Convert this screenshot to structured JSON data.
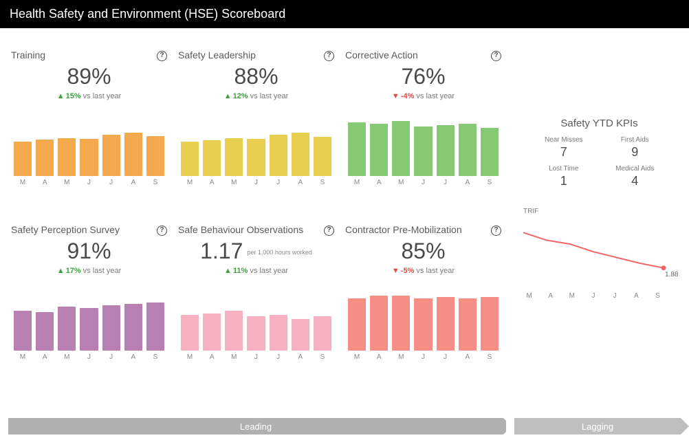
{
  "header": {
    "title": "Health Safety and Environment (HSE) Scoreboard"
  },
  "x_labels": [
    "M",
    "A",
    "M",
    "J",
    "J",
    "A",
    "S"
  ],
  "cards": [
    {
      "title": "Training",
      "pct": "89%",
      "delta": "15%",
      "delta_dir": "up",
      "delta_suffix": "vs last year",
      "bar_color": "#f4a94d",
      "values": [
        50,
        53,
        55,
        54,
        60,
        63,
        58
      ],
      "ymax": 100
    },
    {
      "title": "Safety Leadership",
      "pct": "88%",
      "delta": "12%",
      "delta_dir": "up",
      "delta_suffix": "vs last year",
      "bar_color": "#e9ce4f",
      "values": [
        50,
        52,
        55,
        54,
        60,
        63,
        57
      ],
      "ymax": 100
    },
    {
      "title": "Corrective Action",
      "pct": "76%",
      "delta": "-4%",
      "delta_dir": "down",
      "delta_suffix": "vs last year",
      "bar_color": "#86c974",
      "values": [
        78,
        76,
        80,
        72,
        74,
        76,
        70
      ],
      "ymax": 100
    },
    {
      "title": "Safety Perception Survey",
      "pct": "91%",
      "delta": "17%",
      "delta_dir": "up",
      "delta_suffix": "vs last year",
      "bar_color": "#b77fb2",
      "values": [
        58,
        56,
        64,
        62,
        66,
        68,
        70
      ],
      "ymax": 100
    },
    {
      "title": "Safe Behaviour Observations",
      "pct": "1.17",
      "sub_note": "per 1,000 hours worked",
      "delta": "11%",
      "delta_dir": "up",
      "delta_suffix": "vs last year",
      "bar_color": "#f6b0c2",
      "values": [
        52,
        54,
        58,
        50,
        52,
        46,
        50
      ],
      "ymax": 100
    },
    {
      "title": "Contractor Pre-Mobilization",
      "pct": "85%",
      "delta": "-5%",
      "delta_dir": "down",
      "delta_suffix": "vs last year",
      "bar_color": "#f58e85",
      "values": [
        76,
        80,
        80,
        76,
        78,
        76,
        78
      ],
      "ymax": 100
    }
  ],
  "kpi_panel": {
    "title": "Safety YTD KPIs",
    "items": [
      {
        "label": "Near Misses",
        "value": "7"
      },
      {
        "label": "First Aids",
        "value": "9"
      },
      {
        "label": "Lost Time",
        "value": "1"
      },
      {
        "label": "Medical Aids",
        "value": "4"
      }
    ]
  },
  "trif": {
    "label": "TRIF",
    "color": "#f26666",
    "values": [
      2.8,
      2.6,
      2.5,
      2.3,
      2.15,
      2.0,
      1.88
    ],
    "ymin": 1.5,
    "ymax": 3.0,
    "end_label": "1.88"
  },
  "footer": {
    "leading": "Leading",
    "lagging": "Lagging"
  },
  "style": {
    "bg": "#ffffff",
    "text": "#4a4a4a",
    "axis_text": "#888888",
    "up_color": "#3aa23a",
    "down_color": "#e64545",
    "arrow_leading_bg": "#b0b0b0",
    "arrow_lagging_bg": "#bfbfbf"
  }
}
